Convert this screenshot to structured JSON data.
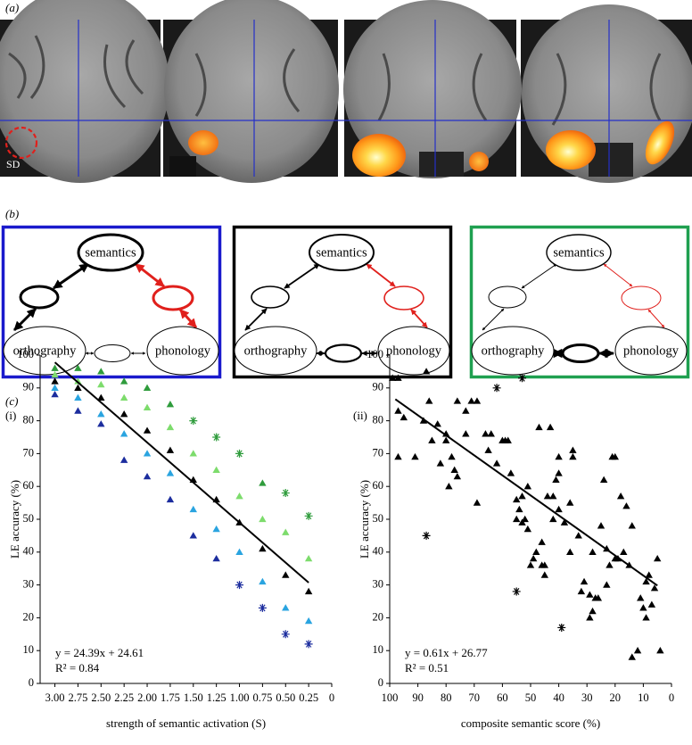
{
  "panels": [
    "(a)",
    "(b)",
    "(c)"
  ],
  "brain": {
    "annotation": "SD"
  },
  "diagrams": [
    {
      "nodes": {
        "top": "semantics",
        "left": "orthography",
        "right": "phonology"
      }
    },
    {
      "nodes": {
        "top": "semantics",
        "left": "orthography",
        "right": "phonology"
      }
    },
    {
      "nodes": {
        "top": "semantics",
        "left": "orthography",
        "right": "phonology"
      }
    }
  ],
  "chart_data": [
    {
      "type": "scatter",
      "panel": "(i)",
      "x_label": "strength of semantic activation (S)",
      "y_label": "LE accuracy (%)",
      "x": [
        3,
        2.75,
        2.5,
        2.25,
        2,
        1.75,
        1.5,
        1.25,
        1,
        0.75,
        0.5,
        0.25
      ],
      "xlim": [
        3.16,
        0
      ],
      "ylim": [
        0,
        100
      ],
      "xticks": [
        {
          "value": 3,
          "label": "3.00"
        },
        2.75,
        {
          "value": 2.5,
          "label": "2.50"
        },
        2.25,
        {
          "value": 2,
          "label": "2.00"
        },
        1.75,
        {
          "value": 1.5,
          "label": "1.50"
        },
        1.25,
        {
          "value": 1,
          "label": "1.00"
        },
        0.75,
        {
          "value": 0.5,
          "label": "0.50"
        },
        0.25,
        0
      ],
      "yticks": [
        0,
        10,
        20,
        30,
        40,
        50,
        60,
        70,
        80,
        90,
        100
      ],
      "series": [
        {
          "color": "#2f9c3c",
          "values": [
            96,
            96,
            95,
            92,
            90,
            85,
            80,
            75,
            70,
            61,
            58,
            51
          ],
          "markers": [
            "triangle",
            "triangle",
            "triangle",
            "triangle",
            "triangle",
            "triangle",
            "asterisk",
            "asterisk",
            "asterisk",
            "triangle",
            "asterisk",
            "asterisk"
          ]
        },
        {
          "color": "#7ddc6c",
          "values": [
            94,
            92,
            91,
            87,
            84,
            78,
            70,
            65,
            57,
            50,
            46,
            38
          ],
          "markers": [
            "triangle",
            "triangle",
            "triangle",
            "triangle",
            "triangle",
            "triangle",
            "triangle",
            "triangle",
            "triangle",
            "triangle",
            "triangle",
            "triangle"
          ]
        },
        {
          "color": "#000000",
          "values": [
            92,
            90,
            87,
            82,
            77,
            71,
            62,
            56,
            49,
            41,
            33,
            28
          ],
          "markers": [
            "triangle",
            "triangle",
            "triangle",
            "triangle",
            "triangle",
            "triangle",
            "triangle",
            "triangle",
            "triangle",
            "triangle",
            "triangle",
            "triangle"
          ]
        },
        {
          "color": "#2aa4e0",
          "values": [
            90,
            87,
            82,
            76,
            70,
            64,
            53,
            47,
            40,
            31,
            23,
            19
          ],
          "markers": [
            "triangle",
            "triangle",
            "triangle",
            "triangle",
            "triangle",
            "triangle",
            "triangle",
            "triangle",
            "triangle",
            "triangle",
            "triangle",
            "triangle"
          ]
        },
        {
          "color": "#1c2d9e",
          "values": [
            88,
            83,
            79,
            68,
            63,
            56,
            45,
            38,
            30,
            23,
            15,
            12
          ],
          "markers": [
            "triangle",
            "triangle",
            "triangle",
            "triangle",
            "triangle",
            "triangle",
            "triangle",
            "triangle",
            "asterisk",
            "asterisk",
            "asterisk",
            "asterisk"
          ]
        }
      ],
      "trendline": {
        "slope": 24.39,
        "intercept": 24.61,
        "x": [
          3,
          0.25
        ]
      },
      "annotations": [
        "y = 24.39x + 24.61",
        "R² = 0.84"
      ]
    },
    {
      "type": "scatter",
      "panel": "(ii)",
      "x_label": "composite semantic score (%)",
      "y_label": "LE accuracy (%)",
      "xlim": [
        100,
        0
      ],
      "ylim": [
        0,
        100
      ],
      "xticks": [
        100,
        90,
        80,
        70,
        60,
        50,
        40,
        30,
        20,
        10,
        0
      ],
      "yticks": [
        0,
        10,
        20,
        30,
        40,
        50,
        60,
        70,
        80,
        90,
        100
      ],
      "series": [
        {
          "color": "#000000",
          "marker": "triangle",
          "x": [
            97,
            99,
            97,
            95,
            97,
            91,
            87,
            86,
            88,
            85,
            83,
            82,
            80,
            80,
            79,
            78,
            77,
            76,
            76,
            73,
            73,
            71,
            69,
            69,
            66,
            65,
            64,
            62,
            60,
            59,
            58,
            57,
            55,
            55,
            54,
            53,
            53,
            52,
            51,
            51,
            50,
            49,
            48,
            47,
            46,
            46,
            45,
            45,
            44,
            43,
            42,
            42,
            41,
            40,
            40,
            40,
            38,
            36,
            35,
            35,
            36,
            33,
            31,
            29,
            29,
            28,
            27,
            26,
            25,
            24,
            23,
            22,
            21,
            20,
            20,
            19,
            18,
            17,
            16,
            15,
            14,
            12,
            11,
            10,
            9,
            9,
            8,
            7,
            6,
            5,
            4,
            14,
            32,
            28,
            23
          ],
          "values": [
            93,
            93,
            83,
            81,
            69,
            69,
            95,
            86,
            80,
            74,
            79,
            67,
            76,
            74,
            60,
            69,
            65,
            63,
            86,
            83,
            76,
            86,
            86,
            55,
            76,
            71,
            76,
            67,
            74,
            74,
            74,
            64,
            56,
            50,
            53,
            49,
            57,
            50,
            47,
            60,
            36,
            38,
            40,
            78,
            43,
            36,
            36,
            33,
            57,
            78,
            50,
            57,
            62,
            64,
            69,
            53,
            49,
            55,
            71,
            69,
            40,
            45,
            31,
            20,
            27,
            22,
            26,
            26,
            48,
            62,
            41,
            36,
            69,
            69,
            38,
            38,
            57,
            40,
            54,
            36,
            8,
            10,
            26,
            23,
            20,
            31,
            33,
            24,
            29,
            38,
            10,
            48,
            28,
            40,
            30
          ]
        },
        {
          "color": "#000000",
          "marker": "asterisk",
          "x": [
            87,
            62,
            53,
            55,
            39
          ],
          "values": [
            45,
            90,
            93,
            28,
            17
          ]
        }
      ],
      "trendline": {
        "slope": 0.61,
        "intercept": 26.77,
        "x": [
          98,
          5
        ]
      },
      "annotations": [
        "y = 0.61x + 26.77",
        "R² = 0.51"
      ]
    }
  ]
}
